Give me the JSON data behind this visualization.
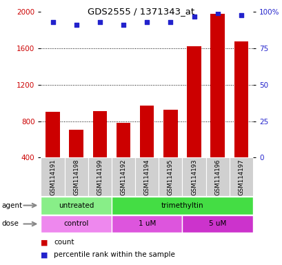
{
  "title": "GDS2555 / 1371343_at",
  "samples": [
    "GSM114191",
    "GSM114198",
    "GSM114199",
    "GSM114192",
    "GSM114194",
    "GSM114195",
    "GSM114193",
    "GSM114196",
    "GSM114197"
  ],
  "counts": [
    900,
    710,
    910,
    780,
    970,
    930,
    1620,
    1980,
    1680
  ],
  "percentile_ranks": [
    93,
    91,
    93,
    91,
    93,
    93,
    97,
    99,
    98
  ],
  "ylim_left": [
    400,
    2000
  ],
  "ylim_right": [
    0,
    100
  ],
  "yticks_left": [
    400,
    800,
    1200,
    1600,
    2000
  ],
  "yticks_right": [
    0,
    25,
    50,
    75,
    100
  ],
  "bar_color": "#cc0000",
  "dot_color": "#2222cc",
  "agent_groups": [
    {
      "label": "untreated",
      "start": 0,
      "end": 3,
      "color": "#88ee88"
    },
    {
      "label": "trimethyltin",
      "start": 3,
      "end": 9,
      "color": "#44dd44"
    }
  ],
  "dose_groups": [
    {
      "label": "control",
      "start": 0,
      "end": 3,
      "color": "#ee88ee"
    },
    {
      "label": "1 uM",
      "start": 3,
      "end": 6,
      "color": "#dd55dd"
    },
    {
      "label": "5 uM",
      "start": 6,
      "end": 9,
      "color": "#cc33cc"
    }
  ],
  "legend_count_color": "#cc0000",
  "legend_dot_color": "#2222cc",
  "tick_label_color_left": "#cc0000",
  "tick_label_color_right": "#2222cc",
  "bg_color": "#ffffff",
  "gray_box_color": "#d0d0d0"
}
